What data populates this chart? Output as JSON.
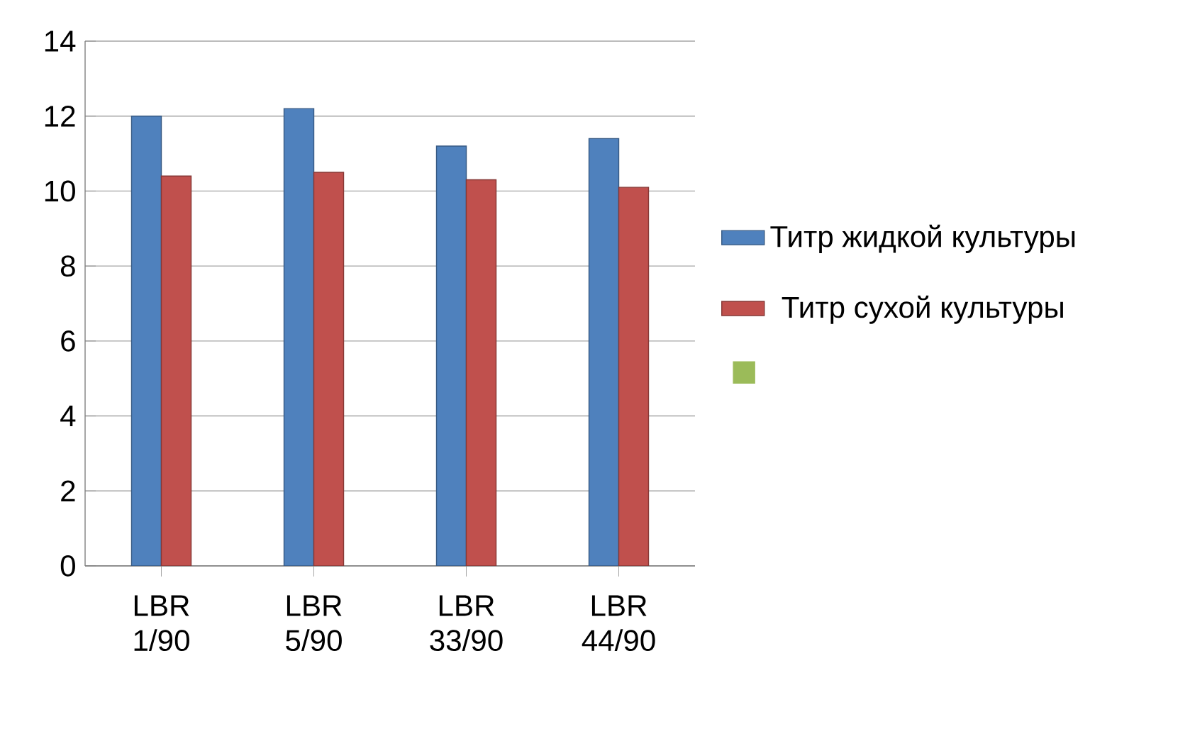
{
  "chart_data": {
    "type": "bar",
    "categories": [
      "LBR 1/90",
      "LBR 5/90",
      "LBR 33/90",
      "LBR 44/90"
    ],
    "series": [
      {
        "name": "Титр жидкой культуры",
        "color": "#4f81bd",
        "values": [
          12.0,
          12.2,
          11.2,
          11.4
        ]
      },
      {
        "name": "Титр сухой культуры",
        "color": "#c0504d",
        "values": [
          10.4,
          10.5,
          10.3,
          10.1
        ]
      },
      {
        "color": "#9bbb59",
        "values": [
          null,
          null,
          null,
          null
        ]
      }
    ],
    "ylim": [
      0,
      14
    ],
    "yticks": [
      0,
      2,
      4,
      6,
      8,
      10,
      12,
      14
    ],
    "grid": "y",
    "legend": "right"
  }
}
